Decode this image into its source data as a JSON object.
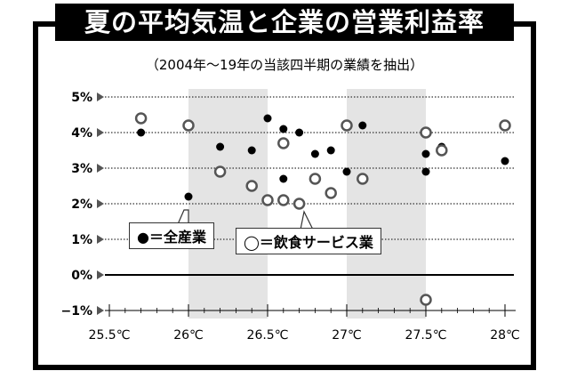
{
  "chart_data": {
    "type": "scatter",
    "title": "夏の平均気温と企業の営業利益率",
    "subtitle": "（2004年～19年の当該四半期の業績を抽出）",
    "x_ticks": [
      "25.5℃",
      "26℃",
      "26.5℃",
      "27℃",
      "27.5℃",
      "28℃"
    ],
    "y_ticks": [
      "5%",
      "4%",
      "3%",
      "2%",
      "1%",
      "0%",
      "−1%"
    ],
    "xlim": [
      25.5,
      28.0
    ],
    "ylim": [
      -1,
      5
    ],
    "grid": "horizontal dotted",
    "shaded_x_ranges": [
      [
        26.0,
        26.5
      ],
      [
        27.0,
        27.5
      ]
    ],
    "series": [
      {
        "name": "●＝全産業",
        "marker": "filled-circle",
        "color": "#000000",
        "points": [
          [
            25.7,
            4.0
          ],
          [
            26.0,
            2.2
          ],
          [
            26.2,
            3.6
          ],
          [
            26.4,
            3.5
          ],
          [
            26.5,
            4.4
          ],
          [
            26.6,
            4.1
          ],
          [
            26.6,
            2.7
          ],
          [
            26.7,
            4.0
          ],
          [
            26.8,
            3.4
          ],
          [
            26.9,
            3.5
          ],
          [
            27.0,
            2.9
          ],
          [
            27.1,
            4.2
          ],
          [
            27.5,
            3.4
          ],
          [
            27.5,
            2.9
          ],
          [
            27.6,
            3.6
          ],
          [
            28.0,
            3.2
          ]
        ]
      },
      {
        "name": "◯＝飲食サービス業",
        "marker": "open-circle",
        "color": "#555555",
        "points": [
          [
            25.7,
            4.4
          ],
          [
            26.0,
            4.2
          ],
          [
            26.2,
            2.9
          ],
          [
            26.4,
            2.5
          ],
          [
            26.5,
            2.1
          ],
          [
            26.6,
            2.1
          ],
          [
            26.6,
            3.7
          ],
          [
            26.7,
            2.0
          ],
          [
            26.8,
            2.7
          ],
          [
            26.9,
            2.3
          ],
          [
            27.0,
            4.2
          ],
          [
            27.1,
            2.7
          ],
          [
            27.5,
            4.0
          ],
          [
            27.5,
            -0.7
          ],
          [
            27.6,
            3.5
          ],
          [
            28.0,
            4.2
          ]
        ]
      }
    ]
  }
}
